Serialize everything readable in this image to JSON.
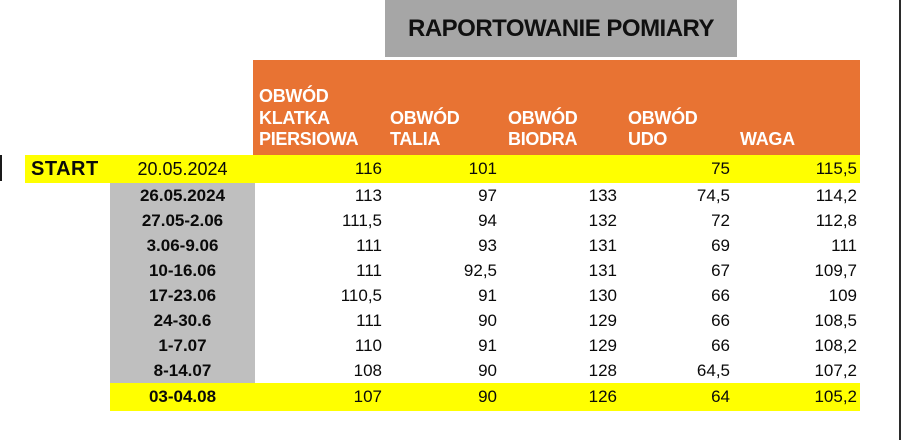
{
  "title": "RAPORTOWANIE POMIARY",
  "header": {
    "columns": [
      "OBWÓD KLATKA PIERSIOWA",
      "OBWÓD TALIA",
      "OBWÓD BIODRA",
      "OBWÓD UDO",
      "WAGA"
    ]
  },
  "table": {
    "start_row": {
      "label": "START",
      "period": "20.05.2024",
      "values": [
        "116",
        "101",
        "",
        "75",
        "115,5"
      ]
    },
    "rows": [
      {
        "period": "26.05.2024",
        "values": [
          "113",
          "97",
          "133",
          "74,5",
          "114,2"
        ]
      },
      {
        "period": "27.05-2.06",
        "values": [
          "111,5",
          "94",
          "132",
          "72",
          "112,8"
        ]
      },
      {
        "period": "3.06-9.06",
        "values": [
          "111",
          "93",
          "131",
          "69",
          "111"
        ]
      },
      {
        "period": "10-16.06",
        "values": [
          "111",
          "92,5",
          "131",
          "67",
          "109,7"
        ]
      },
      {
        "period": "17-23.06",
        "values": [
          "110,5",
          "91",
          "130",
          "66",
          "109"
        ]
      },
      {
        "period": "24-30.6",
        "values": [
          "111",
          "90",
          "129",
          "66",
          "108,5"
        ]
      },
      {
        "period": "1-7.07",
        "values": [
          "110",
          "91",
          "129",
          "66",
          "108,2"
        ]
      },
      {
        "period": "8-14.07",
        "values": [
          "108",
          "90",
          "128",
          "64,5",
          "107,2"
        ]
      }
    ],
    "final_row": {
      "period": "03-04.08",
      "values": [
        "107",
        "90",
        "126",
        "64",
        "105,2"
      ]
    }
  },
  "colors": {
    "header_orange": "#E87333",
    "title_gray": "#A6A6A6",
    "period_gray": "#BFBFBF",
    "highlight_yellow": "#FFFF00"
  }
}
